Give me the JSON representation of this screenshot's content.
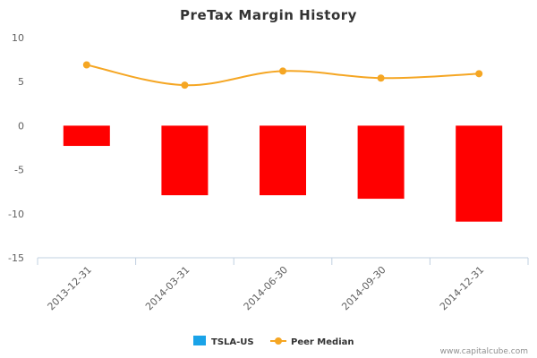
{
  "chart_data": {
    "type": "bar",
    "title": "PreTax Margin History",
    "categories": [
      "2013-12-31",
      "2014-03-31",
      "2014-06-30",
      "2014-09-30",
      "2014-12-31"
    ],
    "series": [
      {
        "name": "TSLA-US",
        "kind": "bar",
        "values": [
          -2.3,
          -7.9,
          -7.9,
          -8.3,
          -10.9
        ],
        "color": "#ff0000",
        "legend_color": "#1aa3e8"
      },
      {
        "name": "Peer Median",
        "kind": "line",
        "values": [
          6.9,
          4.6,
          6.2,
          5.4,
          5.9
        ],
        "color": "#f5a623"
      }
    ],
    "yticks": [
      "10",
      "5",
      "0",
      "-5",
      "-10",
      "-15"
    ],
    "ylim": [
      -15,
      10
    ],
    "xlabel": "",
    "ylabel": "",
    "grid": false,
    "legend_position": "bottom-center"
  },
  "credit": "www.capitalcube.com"
}
